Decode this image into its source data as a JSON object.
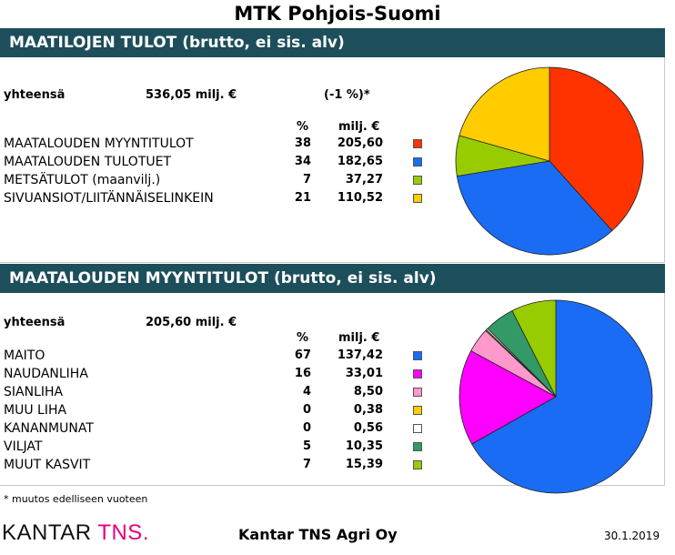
{
  "title": "MTK Pohjois-Suomi",
  "footnote": "* muutos edelliseen vuoteen",
  "logo_text": "KANTAR",
  "logo_accent": "TNS.",
  "company": "Kantar TNS Agri Oy",
  "date": "30.1.2019",
  "chart_data": [
    {
      "type": "pie",
      "title": "MAATILOJEN TULOT (brutto, ei sis. alv)",
      "total_label": "yhteensä",
      "total_value": "536,05 milj. €",
      "change": "(-1 %)*",
      "col_pct": "%",
      "col_value": "milj. €",
      "slices": [
        {
          "label": "MAATALOUDEN MYYNTITULOT",
          "pct": "38",
          "value": "205,60",
          "amount": 205.6,
          "color": "#ff3300"
        },
        {
          "label": "MAATALOUDEN TULOTUET",
          "pct": "34",
          "value": "182,65",
          "amount": 182.65,
          "color": "#1a6cf5"
        },
        {
          "label": "METSÄTULOT (maanvilj.)",
          "pct": "7",
          "value": "37,27",
          "amount": 37.27,
          "color": "#99cc00"
        },
        {
          "label": "SIVUANSIOT/LIITÄNNÄISELINKEIN",
          "pct": "21",
          "value": "110,52",
          "amount": 110.52,
          "color": "#ffcc00"
        }
      ]
    },
    {
      "type": "pie",
      "title": "MAATALOUDEN MYYNTITULOT (brutto, ei sis. alv)",
      "total_label": "yhteensä",
      "total_value": "205,60 milj. €",
      "col_pct": "%",
      "col_value": "milj. €",
      "slices": [
        {
          "label": "MAITO",
          "pct": "67",
          "value": "137,42",
          "amount": 137.42,
          "color": "#1a6cf5"
        },
        {
          "label": "NAUDANLIHA",
          "pct": "16",
          "value": "33,01",
          "amount": 33.01,
          "color": "#ff00ff"
        },
        {
          "label": "SIANLIHA",
          "pct": "4",
          "value": "8,50",
          "amount": 8.5,
          "color": "#ff99cc"
        },
        {
          "label": "MUU LIHA",
          "pct": "0",
          "value": "0,38",
          "amount": 0.38,
          "color": "#ffcc00"
        },
        {
          "label": "KANANMUNAT",
          "pct": "0",
          "value": "0,56",
          "amount": 0.56,
          "color": "#ffffff"
        },
        {
          "label": "VILJAT",
          "pct": "5",
          "value": "10,35",
          "amount": 10.35,
          "color": "#339966"
        },
        {
          "label": "MUUT KASVIT",
          "pct": "7",
          "value": "15,39",
          "amount": 15.39,
          "color": "#99cc00"
        }
      ]
    }
  ]
}
